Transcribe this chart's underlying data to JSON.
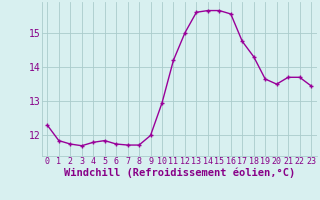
{
  "x": [
    0,
    1,
    2,
    3,
    4,
    5,
    6,
    7,
    8,
    9,
    10,
    11,
    12,
    13,
    14,
    15,
    16,
    17,
    18,
    19,
    20,
    21,
    22,
    23
  ],
  "y": [
    12.3,
    11.85,
    11.75,
    11.7,
    11.8,
    11.85,
    11.75,
    11.72,
    11.72,
    12.0,
    12.95,
    14.2,
    15.0,
    15.6,
    15.65,
    15.65,
    15.55,
    14.75,
    14.3,
    13.65,
    13.5,
    13.7,
    13.7,
    13.45
  ],
  "line_color": "#990099",
  "marker": "+",
  "marker_size": 3,
  "marker_linewidth": 1.0,
  "bg_color": "#d8f0f0",
  "grid_color": "#aacccc",
  "xlabel": "Windchill (Refroidissement éolien,°C)",
  "xlabel_color": "#880088",
  "xlabel_fontsize": 7.5,
  "ytick_labels": [
    "12",
    "13",
    "14",
    "15"
  ],
  "ytick_values": [
    12,
    13,
    14,
    15
  ],
  "ylim": [
    11.4,
    15.9
  ],
  "xlim": [
    -0.5,
    23.5
  ],
  "xtick_fontsize": 6,
  "ytick_fontsize": 7,
  "tick_color": "#880088",
  "linewidth": 1.0
}
